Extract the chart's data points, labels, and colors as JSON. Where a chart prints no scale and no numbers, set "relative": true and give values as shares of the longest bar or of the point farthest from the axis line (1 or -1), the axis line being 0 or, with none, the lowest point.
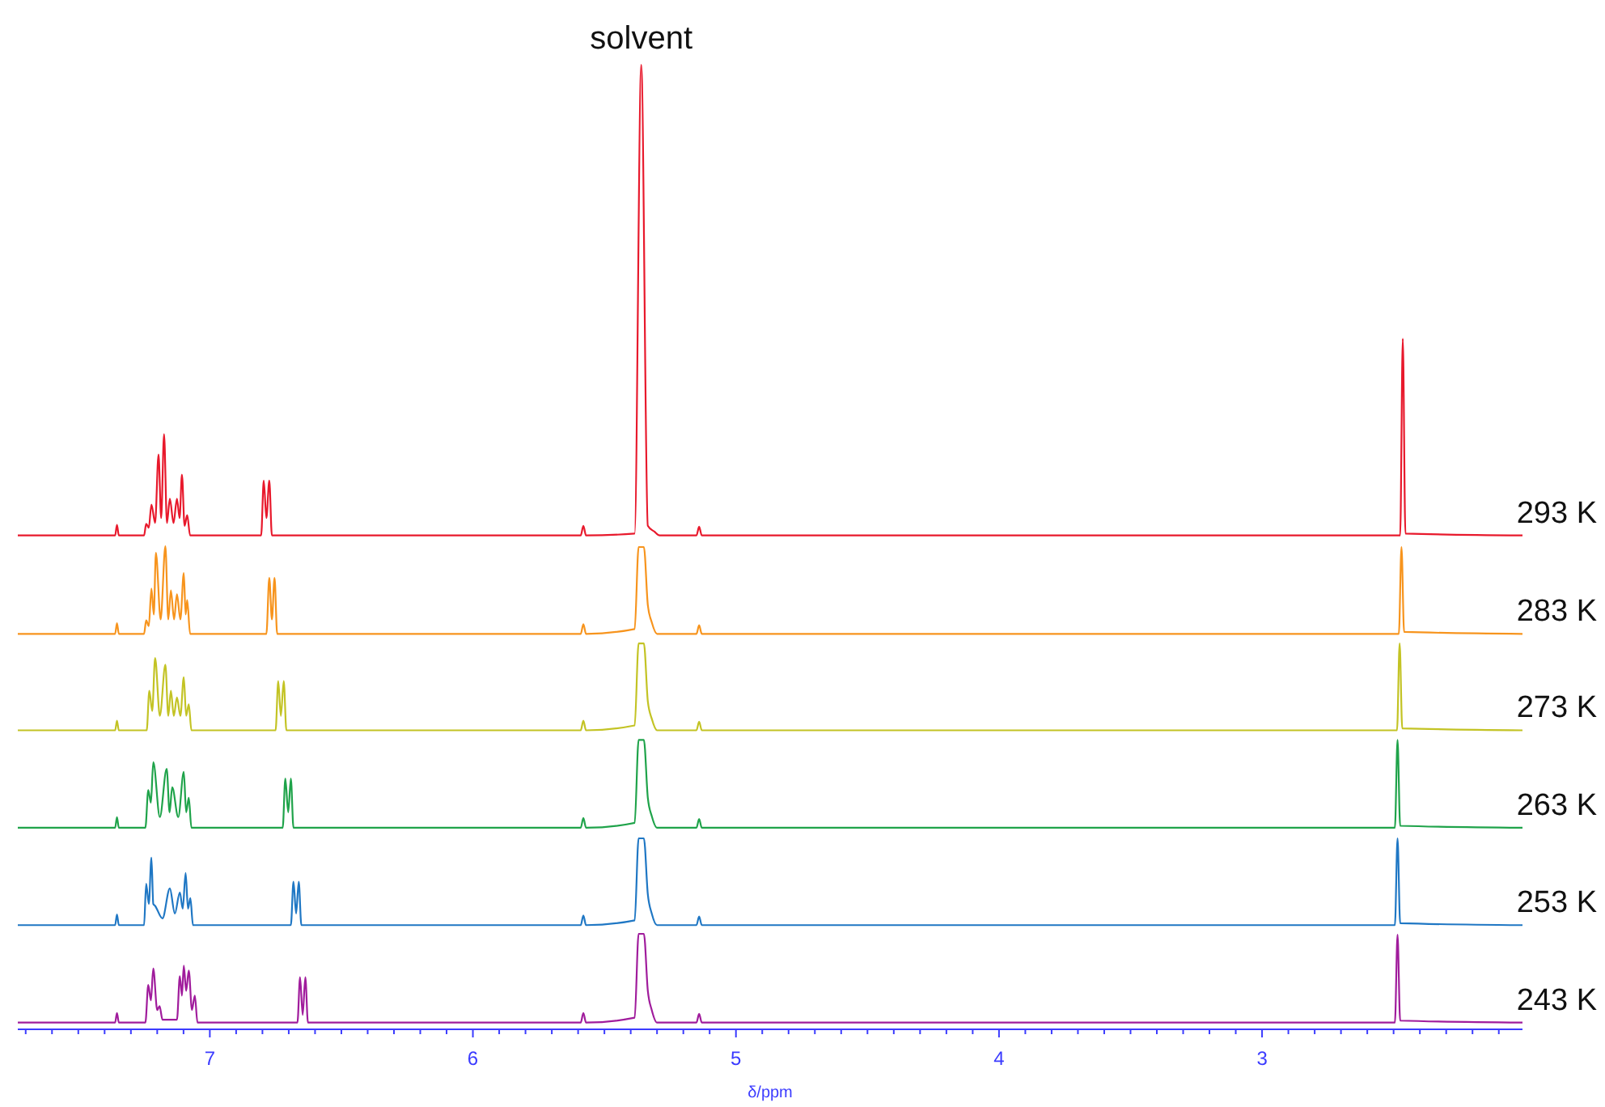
{
  "chart_data": {
    "type": "line",
    "relative": true,
    "xlabel": "δ/ppm",
    "xlim": [
      7.73,
      2.01
    ],
    "xticks": [
      {
        "value": 7.7,
        "label": null
      },
      {
        "value": 7.6,
        "label": null
      },
      {
        "value": 7.5,
        "label": null
      },
      {
        "value": 7.4,
        "label": null
      },
      {
        "value": 7.3,
        "label": null
      },
      {
        "value": 7.2,
        "label": null
      },
      {
        "value": 7.1,
        "label": null
      },
      7,
      {
        "value": 6.9,
        "label": null
      },
      {
        "value": 6.8,
        "label": null
      },
      {
        "value": 6.7,
        "label": null
      },
      {
        "value": 6.6,
        "label": null
      },
      {
        "value": 6.5,
        "label": null
      },
      {
        "value": 6.4,
        "label": null
      },
      {
        "value": 6.3,
        "label": null
      },
      {
        "value": 6.2,
        "label": null
      },
      {
        "value": 6.1,
        "label": null
      },
      6,
      {
        "value": 5.9,
        "label": null
      },
      {
        "value": 5.8,
        "label": null
      },
      {
        "value": 5.7,
        "label": null
      },
      {
        "value": 5.6,
        "label": null
      },
      {
        "value": 5.5,
        "label": null
      },
      {
        "value": 5.4,
        "label": null
      },
      {
        "value": 5.3,
        "label": null
      },
      {
        "value": 5.2,
        "label": null
      },
      {
        "value": 5.1,
        "label": null
      },
      5,
      {
        "value": 4.9,
        "label": null
      },
      {
        "value": 4.8,
        "label": null
      },
      {
        "value": 4.7,
        "label": null
      },
      {
        "value": 4.6,
        "label": null
      },
      {
        "value": 4.5,
        "label": null
      },
      {
        "value": 4.4,
        "label": null
      },
      {
        "value": 4.3,
        "label": null
      },
      {
        "value": 4.2,
        "label": null
      },
      {
        "value": 4.1,
        "label": null
      },
      4,
      {
        "value": 3.9,
        "label": null
      },
      {
        "value": 3.8,
        "label": null
      },
      {
        "value": 3.7,
        "label": null
      },
      {
        "value": 3.6,
        "label": null
      },
      {
        "value": 3.5,
        "label": null
      },
      {
        "value": 3.4,
        "label": null
      },
      {
        "value": 3.3,
        "label": null
      },
      {
        "value": 3.2,
        "label": null
      },
      {
        "value": 3.1,
        "label": null
      },
      3,
      {
        "value": 2.9,
        "label": null
      },
      {
        "value": 2.8,
        "label": null
      },
      {
        "value": 2.7,
        "label": null
      },
      {
        "value": 2.6,
        "label": null
      },
      {
        "value": 2.5,
        "label": null
      },
      {
        "value": 2.4,
        "label": null
      },
      {
        "value": 2.3,
        "label": null
      },
      {
        "value": 2.2,
        "label": null
      },
      {
        "value": 2.1,
        "label": null
      }
    ],
    "annotations": [
      {
        "text": "solvent",
        "x": 5.36,
        "y": 1.0
      }
    ],
    "series": [
      {
        "name": "293 K",
        "color": "#e8192c",
        "x": [
          7.73,
          7.36,
          7.353,
          7.346,
          7.25,
          7.242,
          7.232,
          7.222,
          7.208,
          7.195,
          7.185,
          7.174,
          7.163,
          7.152,
          7.138,
          7.125,
          7.115,
          7.106,
          7.096,
          7.086,
          7.075,
          6.805,
          6.795,
          6.785,
          6.774,
          6.764,
          5.59,
          5.58,
          5.57,
          5.385,
          5.36,
          5.335,
          5.31,
          5.29,
          5.15,
          5.14,
          5.13,
          2.475,
          2.465,
          2.455,
          2.01
        ],
        "values": [
          0.512,
          0.512,
          0.523,
          0.512,
          0.512,
          0.524,
          0.52,
          0.544,
          0.525,
          0.596,
          0.53,
          0.617,
          0.525,
          0.55,
          0.525,
          0.55,
          0.53,
          0.575,
          0.522,
          0.533,
          0.512,
          0.512,
          0.569,
          0.53,
          0.569,
          0.512,
          0.512,
          0.522,
          0.512,
          0.514,
          1.0,
          0.522,
          0.516,
          0.512,
          0.512,
          0.521,
          0.512,
          0.512,
          0.716,
          0.514,
          0.512
        ]
      },
      {
        "name": "283 K",
        "color": "#f7941d",
        "x": [
          7.73,
          7.36,
          7.353,
          7.346,
          7.25,
          7.242,
          7.232,
          7.222,
          7.213,
          7.205,
          7.187,
          7.169,
          7.158,
          7.148,
          7.136,
          7.125,
          7.112,
          7.099,
          7.092,
          7.086,
          7.075,
          6.785,
          6.774,
          6.764,
          6.754,
          6.744,
          5.59,
          5.58,
          5.57,
          5.385,
          5.37,
          5.35,
          5.335,
          5.32,
          5.3,
          5.15,
          5.14,
          5.13,
          2.48,
          2.47,
          2.46,
          2.01
        ],
        "values": [
          0.41,
          0.41,
          0.421,
          0.41,
          0.41,
          0.424,
          0.418,
          0.457,
          0.43,
          0.494,
          0.425,
          0.501,
          0.425,
          0.455,
          0.425,
          0.451,
          0.425,
          0.473,
          0.43,
          0.445,
          0.41,
          0.41,
          0.468,
          0.425,
          0.468,
          0.41,
          0.41,
          0.42,
          0.41,
          0.415,
          0.5,
          0.5,
          0.44,
          0.422,
          0.41,
          0.41,
          0.419,
          0.41,
          0.41,
          0.5,
          0.412,
          0.41
        ]
      },
      {
        "name": "273 K",
        "color": "#c3c324",
        "x": [
          7.73,
          7.36,
          7.353,
          7.346,
          7.24,
          7.23,
          7.219,
          7.208,
          7.19,
          7.169,
          7.158,
          7.148,
          7.137,
          7.125,
          7.112,
          7.099,
          7.09,
          7.08,
          7.07,
          6.75,
          6.74,
          6.73,
          6.719,
          6.709,
          5.59,
          5.58,
          5.57,
          5.385,
          5.37,
          5.35,
          5.335,
          5.32,
          5.3,
          5.15,
          5.14,
          5.13,
          2.487,
          2.477,
          2.467,
          2.01
        ],
        "values": [
          0.31,
          0.31,
          0.32,
          0.31,
          0.31,
          0.351,
          0.33,
          0.385,
          0.325,
          0.378,
          0.325,
          0.351,
          0.325,
          0.344,
          0.325,
          0.365,
          0.325,
          0.337,
          0.31,
          0.31,
          0.361,
          0.325,
          0.361,
          0.31,
          0.31,
          0.32,
          0.31,
          0.315,
          0.4,
          0.4,
          0.34,
          0.322,
          0.31,
          0.31,
          0.319,
          0.31,
          0.31,
          0.4,
          0.312,
          0.31
        ]
      },
      {
        "name": "263 K",
        "color": "#1fa34a",
        "x": [
          7.73,
          7.36,
          7.353,
          7.346,
          7.245,
          7.234,
          7.224,
          7.215,
          7.19,
          7.164,
          7.153,
          7.143,
          7.12,
          7.099,
          7.09,
          7.08,
          7.07,
          6.723,
          6.713,
          6.702,
          6.692,
          6.682,
          5.59,
          5.58,
          5.57,
          5.385,
          5.37,
          5.35,
          5.335,
          5.32,
          5.3,
          5.15,
          5.14,
          5.13,
          2.495,
          2.485,
          2.475,
          2.01
        ],
        "values": [
          0.209,
          0.209,
          0.22,
          0.209,
          0.209,
          0.248,
          0.235,
          0.277,
          0.22,
          0.27,
          0.225,
          0.251,
          0.22,
          0.267,
          0.225,
          0.24,
          0.209,
          0.209,
          0.26,
          0.225,
          0.26,
          0.209,
          0.209,
          0.219,
          0.209,
          0.214,
          0.3,
          0.3,
          0.24,
          0.221,
          0.209,
          0.209,
          0.218,
          0.209,
          0.209,
          0.3,
          0.211,
          0.209
        ]
      },
      {
        "name": "253 K",
        "color": "#1f77c4",
        "x": [
          7.73,
          7.36,
          7.353,
          7.346,
          7.25,
          7.242,
          7.232,
          7.222,
          7.215,
          7.208,
          7.18,
          7.152,
          7.133,
          7.114,
          7.103,
          7.092,
          7.083,
          7.074,
          7.064,
          6.692,
          6.682,
          6.672,
          6.662,
          6.652,
          5.59,
          5.58,
          5.57,
          5.385,
          5.37,
          5.35,
          5.335,
          5.32,
          5.3,
          5.15,
          5.14,
          5.13,
          2.495,
          2.485,
          2.475,
          2.01
        ],
        "values": [
          0.108,
          0.108,
          0.119,
          0.108,
          0.108,
          0.151,
          0.13,
          0.178,
          0.13,
          0.128,
          0.115,
          0.146,
          0.12,
          0.142,
          0.125,
          0.162,
          0.125,
          0.136,
          0.108,
          0.108,
          0.153,
          0.12,
          0.153,
          0.108,
          0.108,
          0.118,
          0.108,
          0.113,
          0.198,
          0.198,
          0.14,
          0.12,
          0.108,
          0.108,
          0.117,
          0.108,
          0.108,
          0.198,
          0.11,
          0.108
        ]
      },
      {
        "name": "243 K",
        "color": "#a01c9c",
        "x": [
          7.73,
          7.36,
          7.353,
          7.346,
          7.245,
          7.234,
          7.224,
          7.215,
          7.2,
          7.191,
          7.18,
          7.125,
          7.114,
          7.106,
          7.099,
          7.09,
          7.08,
          7.068,
          7.057,
          7.047,
          6.667,
          6.657,
          6.647,
          6.637,
          6.627,
          5.59,
          5.58,
          5.57,
          5.385,
          5.37,
          5.35,
          5.335,
          5.32,
          5.3,
          5.15,
          5.14,
          5.13,
          2.495,
          2.485,
          2.475,
          2.01
        ],
        "values": [
          0.007,
          0.007,
          0.017,
          0.007,
          0.007,
          0.046,
          0.03,
          0.063,
          0.02,
          0.024,
          0.01,
          0.01,
          0.055,
          0.035,
          0.066,
          0.04,
          0.061,
          0.02,
          0.035,
          0.007,
          0.007,
          0.054,
          0.015,
          0.054,
          0.007,
          0.007,
          0.017,
          0.007,
          0.012,
          0.099,
          0.099,
          0.04,
          0.02,
          0.007,
          0.007,
          0.016,
          0.007,
          0.007,
          0.098,
          0.009,
          0.007
        ]
      }
    ]
  }
}
